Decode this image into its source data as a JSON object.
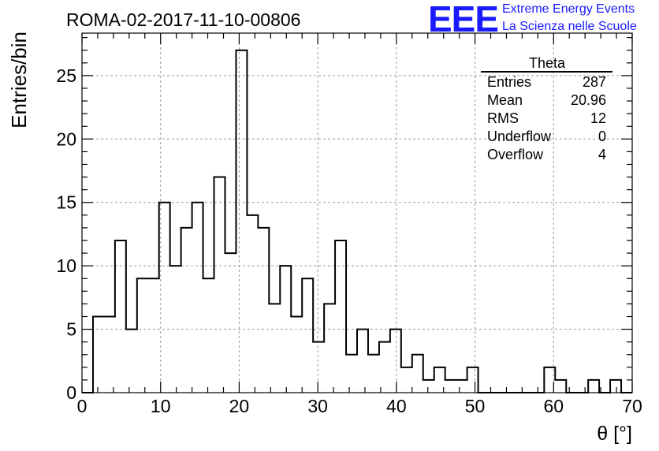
{
  "chart_data": {
    "type": "bar",
    "title": "ROMA-02-2017-11-10-00806",
    "xlabel": "θ [°]",
    "ylabel": "Entries/bin",
    "xlim": [
      0,
      70
    ],
    "ylim": [
      0,
      28.35
    ],
    "bin_width": 1.4,
    "x_ticks": [
      0,
      10,
      20,
      30,
      40,
      50,
      60,
      70
    ],
    "y_ticks": [
      0,
      5,
      10,
      15,
      20,
      25
    ],
    "grid": true,
    "values": [
      0,
      6,
      6,
      12,
      5,
      9,
      9,
      15,
      10,
      13,
      15,
      9,
      17,
      11,
      27,
      14,
      13,
      7,
      10,
      6,
      9,
      4,
      7,
      12,
      3,
      5,
      3,
      4,
      5,
      2,
      3,
      1,
      2,
      1,
      1,
      2,
      0,
      0,
      0,
      0,
      0,
      0,
      2,
      1,
      0,
      0,
      1,
      0,
      1,
      0
    ],
    "stats_box": {
      "title": "Theta",
      "rows": [
        {
          "label": "Entries",
          "value": "287"
        },
        {
          "label": "Mean",
          "value": "20.96"
        },
        {
          "label": "RMS",
          "value": "12"
        },
        {
          "label": "Underflow",
          "value": "0"
        },
        {
          "label": "Overflow",
          "value": "4"
        }
      ]
    }
  },
  "logo": {
    "mark": "EEE",
    "line1": "Extreme Energy Events",
    "line2": "La Scienza nelle Scuole"
  }
}
